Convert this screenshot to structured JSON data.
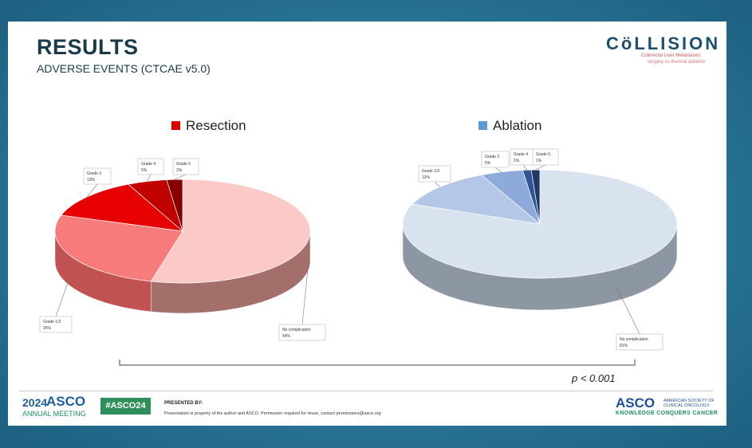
{
  "slide": {
    "title": "RESULTS",
    "subtitle": "ADVERSE EVENTS (CTCAE v5.0)",
    "logo_word": "CöLLISION",
    "logo_tagline_1": "Colorectal Liver Metastases:",
    "logo_tagline_2": "surgery vs thermal ablation"
  },
  "chart_data": [
    {
      "type": "pie",
      "title": "Resection",
      "legend_color": "#e00000",
      "categories": [
        "No complication",
        "Grade 1/2",
        "Grade 3",
        "Grade 4",
        "Grade 5"
      ],
      "values": [
        54,
        26,
        13,
        5,
        2
      ],
      "labels": [
        "54%",
        "26%",
        "13%",
        "5%",
        "2%"
      ],
      "colors": [
        "#fbc9c6",
        "#f77b7b",
        "#e60000",
        "#c10000",
        "#870000"
      ],
      "side_colors": [
        "#a46e6b",
        "#c05252",
        "#a80000",
        "#8a0000",
        "#5a0000"
      ]
    },
    {
      "type": "pie",
      "title": "Ablation",
      "legend_color": "#5b9bd5",
      "categories": [
        "No complication",
        "Grade 1/2",
        "Grade 3",
        "Grade 4",
        "Grade 5"
      ],
      "values": [
        81,
        12,
        5,
        1,
        1
      ],
      "labels": [
        "81%",
        "12%",
        "5%",
        "1%",
        "1%"
      ],
      "colors": [
        "#d9e3f0",
        "#b4c7e7",
        "#8eaadb",
        "#2f5597",
        "#1f3864"
      ],
      "side_colors": [
        "#8d97a4",
        "#7a8cab",
        "#5a7aab",
        "#1f3c70",
        "#12254a"
      ]
    }
  ],
  "comparison": {
    "p_value": "p < 0.001"
  },
  "footer": {
    "year": "2024",
    "asco": "ASCO",
    "annual_meeting": "ANNUAL MEETING",
    "hashtag": "#ASCO24",
    "presented_by": "PRESENTED BY:",
    "property_note": "Presentation is property of the author and ASCO. Permission required for reuse, contact permissions@asco.org",
    "society_name": "AMERICAN SOCIETY OF CLINICAL ONCOLOGY",
    "tagline": "KNOWLEDGE CONQUERS CANCER"
  }
}
